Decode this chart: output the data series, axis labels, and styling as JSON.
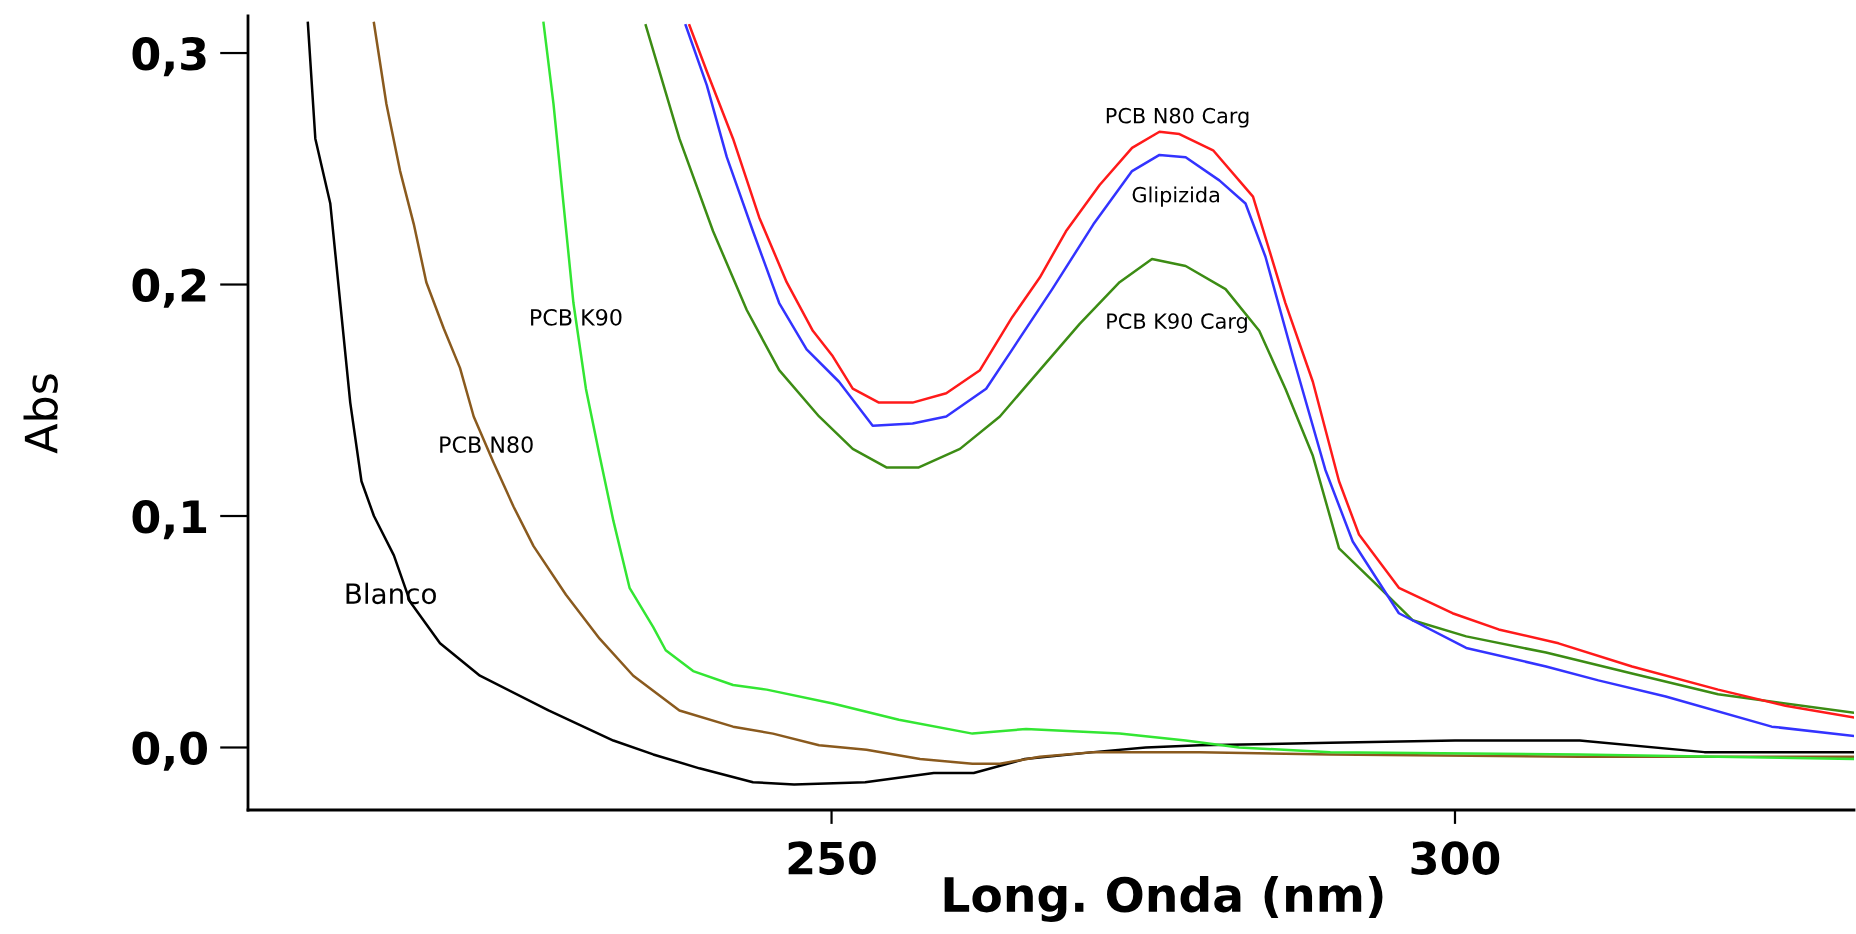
{
  "chart_data": {
    "type": "line",
    "xlabel": "Long. Onda (nm)",
    "ylabel": "Abs",
    "xlim": [
      203.2,
      332
    ],
    "ylim": [
      -0.027,
      0.316
    ],
    "xticks": [
      250,
      300
    ],
    "yticks": [
      {
        "value": 0,
        "label": "0,0"
      },
      {
        "value": 0.1,
        "label": "0,1"
      },
      {
        "value": 0.2,
        "label": "0,2"
      },
      {
        "value": 0.3,
        "label": "0,3"
      }
    ],
    "series": [
      {
        "color": "#000000",
        "x": [
          208.0,
          208.6,
          209.8,
          210.6,
          211.4,
          212.3,
          213.3,
          214.9,
          216.2,
          218.6,
          221.8,
          227.3,
          232.5,
          235.7,
          239.4,
          243.7,
          247.0,
          252.7,
          258.2,
          261.4,
          265.5,
          271.0,
          275.2,
          279.5,
          290,
          300,
          310,
          320,
          332
        ],
        "values": [
          0.313,
          0.263,
          0.235,
          0.192,
          0.149,
          0.115,
          0.1,
          0.083,
          0.063,
          0.045,
          0.031,
          0.016,
          0.003,
          -0.003,
          -0.009,
          -0.015,
          -0.016,
          -0.015,
          -0.011,
          -0.011,
          -0.005,
          -0.002,
          0.0,
          0.001,
          0.002,
          0.003,
          0.003,
          -0.002,
          -0.002
        ]
      },
      {
        "color": "#8a5a1e",
        "x": [
          213.3,
          214.3,
          215.4,
          216.5,
          217.5,
          218.9,
          220.2,
          221.3,
          222.9,
          224.5,
          226.1,
          228.7,
          231.4,
          234.1,
          237.8,
          242.1,
          245.3,
          249.0,
          252.8,
          257.1,
          261.3,
          263.5,
          266.7,
          271.0,
          279.5,
          290,
          310,
          332
        ],
        "values": [
          0.313,
          0.278,
          0.249,
          0.226,
          0.201,
          0.181,
          0.164,
          0.143,
          0.123,
          0.104,
          0.087,
          0.066,
          0.047,
          0.031,
          0.016,
          0.009,
          0.006,
          0.001,
          -0.001,
          -0.005,
          -0.007,
          -0.007,
          -0.004,
          -0.002,
          -0.002,
          -0.003,
          -0.004,
          -0.004
        ]
      },
      {
        "color": "#33e633",
        "x": [
          226.9,
          227.7,
          228.5,
          229.3,
          230.3,
          231.4,
          232.5,
          233.8,
          235.7,
          236.7,
          238.9,
          242.1,
          244.8,
          250.1,
          255.4,
          261.3,
          265.6,
          273.1,
          278.4,
          282.7,
          290,
          310,
          332
        ],
        "values": [
          0.313,
          0.278,
          0.235,
          0.192,
          0.155,
          0.126,
          0.098,
          0.069,
          0.052,
          0.042,
          0.033,
          0.027,
          0.025,
          0.019,
          0.012,
          0.006,
          0.008,
          0.006,
          0.003,
          0.0,
          -0.002,
          -0.003,
          -0.005
        ]
      },
      {
        "color": "#3c8c14",
        "x": [
          235.1,
          237.8,
          240.5,
          243.2,
          245.8,
          249.0,
          251.7,
          254.4,
          257.0,
          260.3,
          263.5,
          266.7,
          269.9,
          273.1,
          275.7,
          278.4,
          281.6,
          284.3,
          286.4,
          288.6,
          290.7,
          293.4,
          296.6,
          300.9,
          307.3,
          314.2,
          321.1,
          332.0
        ],
        "values": [
          0.312,
          0.263,
          0.223,
          0.189,
          0.163,
          0.143,
          0.129,
          0.121,
          0.121,
          0.129,
          0.143,
          0.163,
          0.183,
          0.201,
          0.211,
          0.208,
          0.198,
          0.18,
          0.155,
          0.126,
          0.086,
          0.072,
          0.055,
          0.048,
          0.041,
          0.032,
          0.023,
          0.015
        ]
      },
      {
        "color": "#3333ff",
        "x": [
          238.3,
          240.0,
          241.6,
          243.7,
          245.8,
          248.0,
          250.6,
          253.3,
          256.5,
          259.2,
          262.4,
          264.5,
          267.7,
          271.0,
          274.1,
          276.3,
          278.4,
          281.1,
          283.2,
          284.8,
          287.0,
          289.6,
          291.8,
          295.5,
          300.9,
          307.3,
          311.5,
          316.9,
          325.4,
          332.0
        ],
        "values": [
          0.312,
          0.286,
          0.255,
          0.223,
          0.192,
          0.172,
          0.158,
          0.139,
          0.14,
          0.143,
          0.155,
          0.172,
          0.198,
          0.226,
          0.249,
          0.256,
          0.255,
          0.245,
          0.235,
          0.212,
          0.169,
          0.12,
          0.089,
          0.058,
          0.043,
          0.035,
          0.029,
          0.022,
          0.009,
          0.005
        ]
      },
      {
        "color": "#ff1a1a",
        "x": [
          238.6,
          240.0,
          242.1,
          244.2,
          246.4,
          248.5,
          250.1,
          251.7,
          253.8,
          256.5,
          259.2,
          261.9,
          264.5,
          266.7,
          268.8,
          271.5,
          274.1,
          276.3,
          277.9,
          280.6,
          283.8,
          286.4,
          288.6,
          290.7,
          292.3,
          295.5,
          299.8,
          303.5,
          308.3,
          314.2,
          321.1,
          326.5,
          332.0
        ],
        "values": [
          0.312,
          0.292,
          0.263,
          0.229,
          0.201,
          0.18,
          0.169,
          0.155,
          0.149,
          0.149,
          0.153,
          0.163,
          0.186,
          0.203,
          0.223,
          0.243,
          0.259,
          0.266,
          0.265,
          0.258,
          0.238,
          0.192,
          0.158,
          0.115,
          0.092,
          0.069,
          0.058,
          0.051,
          0.045,
          0.035,
          0.025,
          0.018,
          0.013
        ]
      }
    ],
    "annotations": [
      {
        "text": "Blanco",
        "x": 216.2,
        "y": 0.063
      },
      {
        "text": "PCB N80",
        "x": 222.3,
        "y": 0.13
      },
      {
        "text": "PCB K90",
        "x": 229.5,
        "y": 0.185
      },
      {
        "text": "PCB N80 Carg",
        "x": 276.3,
        "y": 0.266
      },
      {
        "text": "Glipizida",
        "x": 276.3,
        "y": 0.256
      },
      {
        "text": "PCB K90 Carg",
        "x": 275.7,
        "y": 0.211
      }
    ]
  }
}
